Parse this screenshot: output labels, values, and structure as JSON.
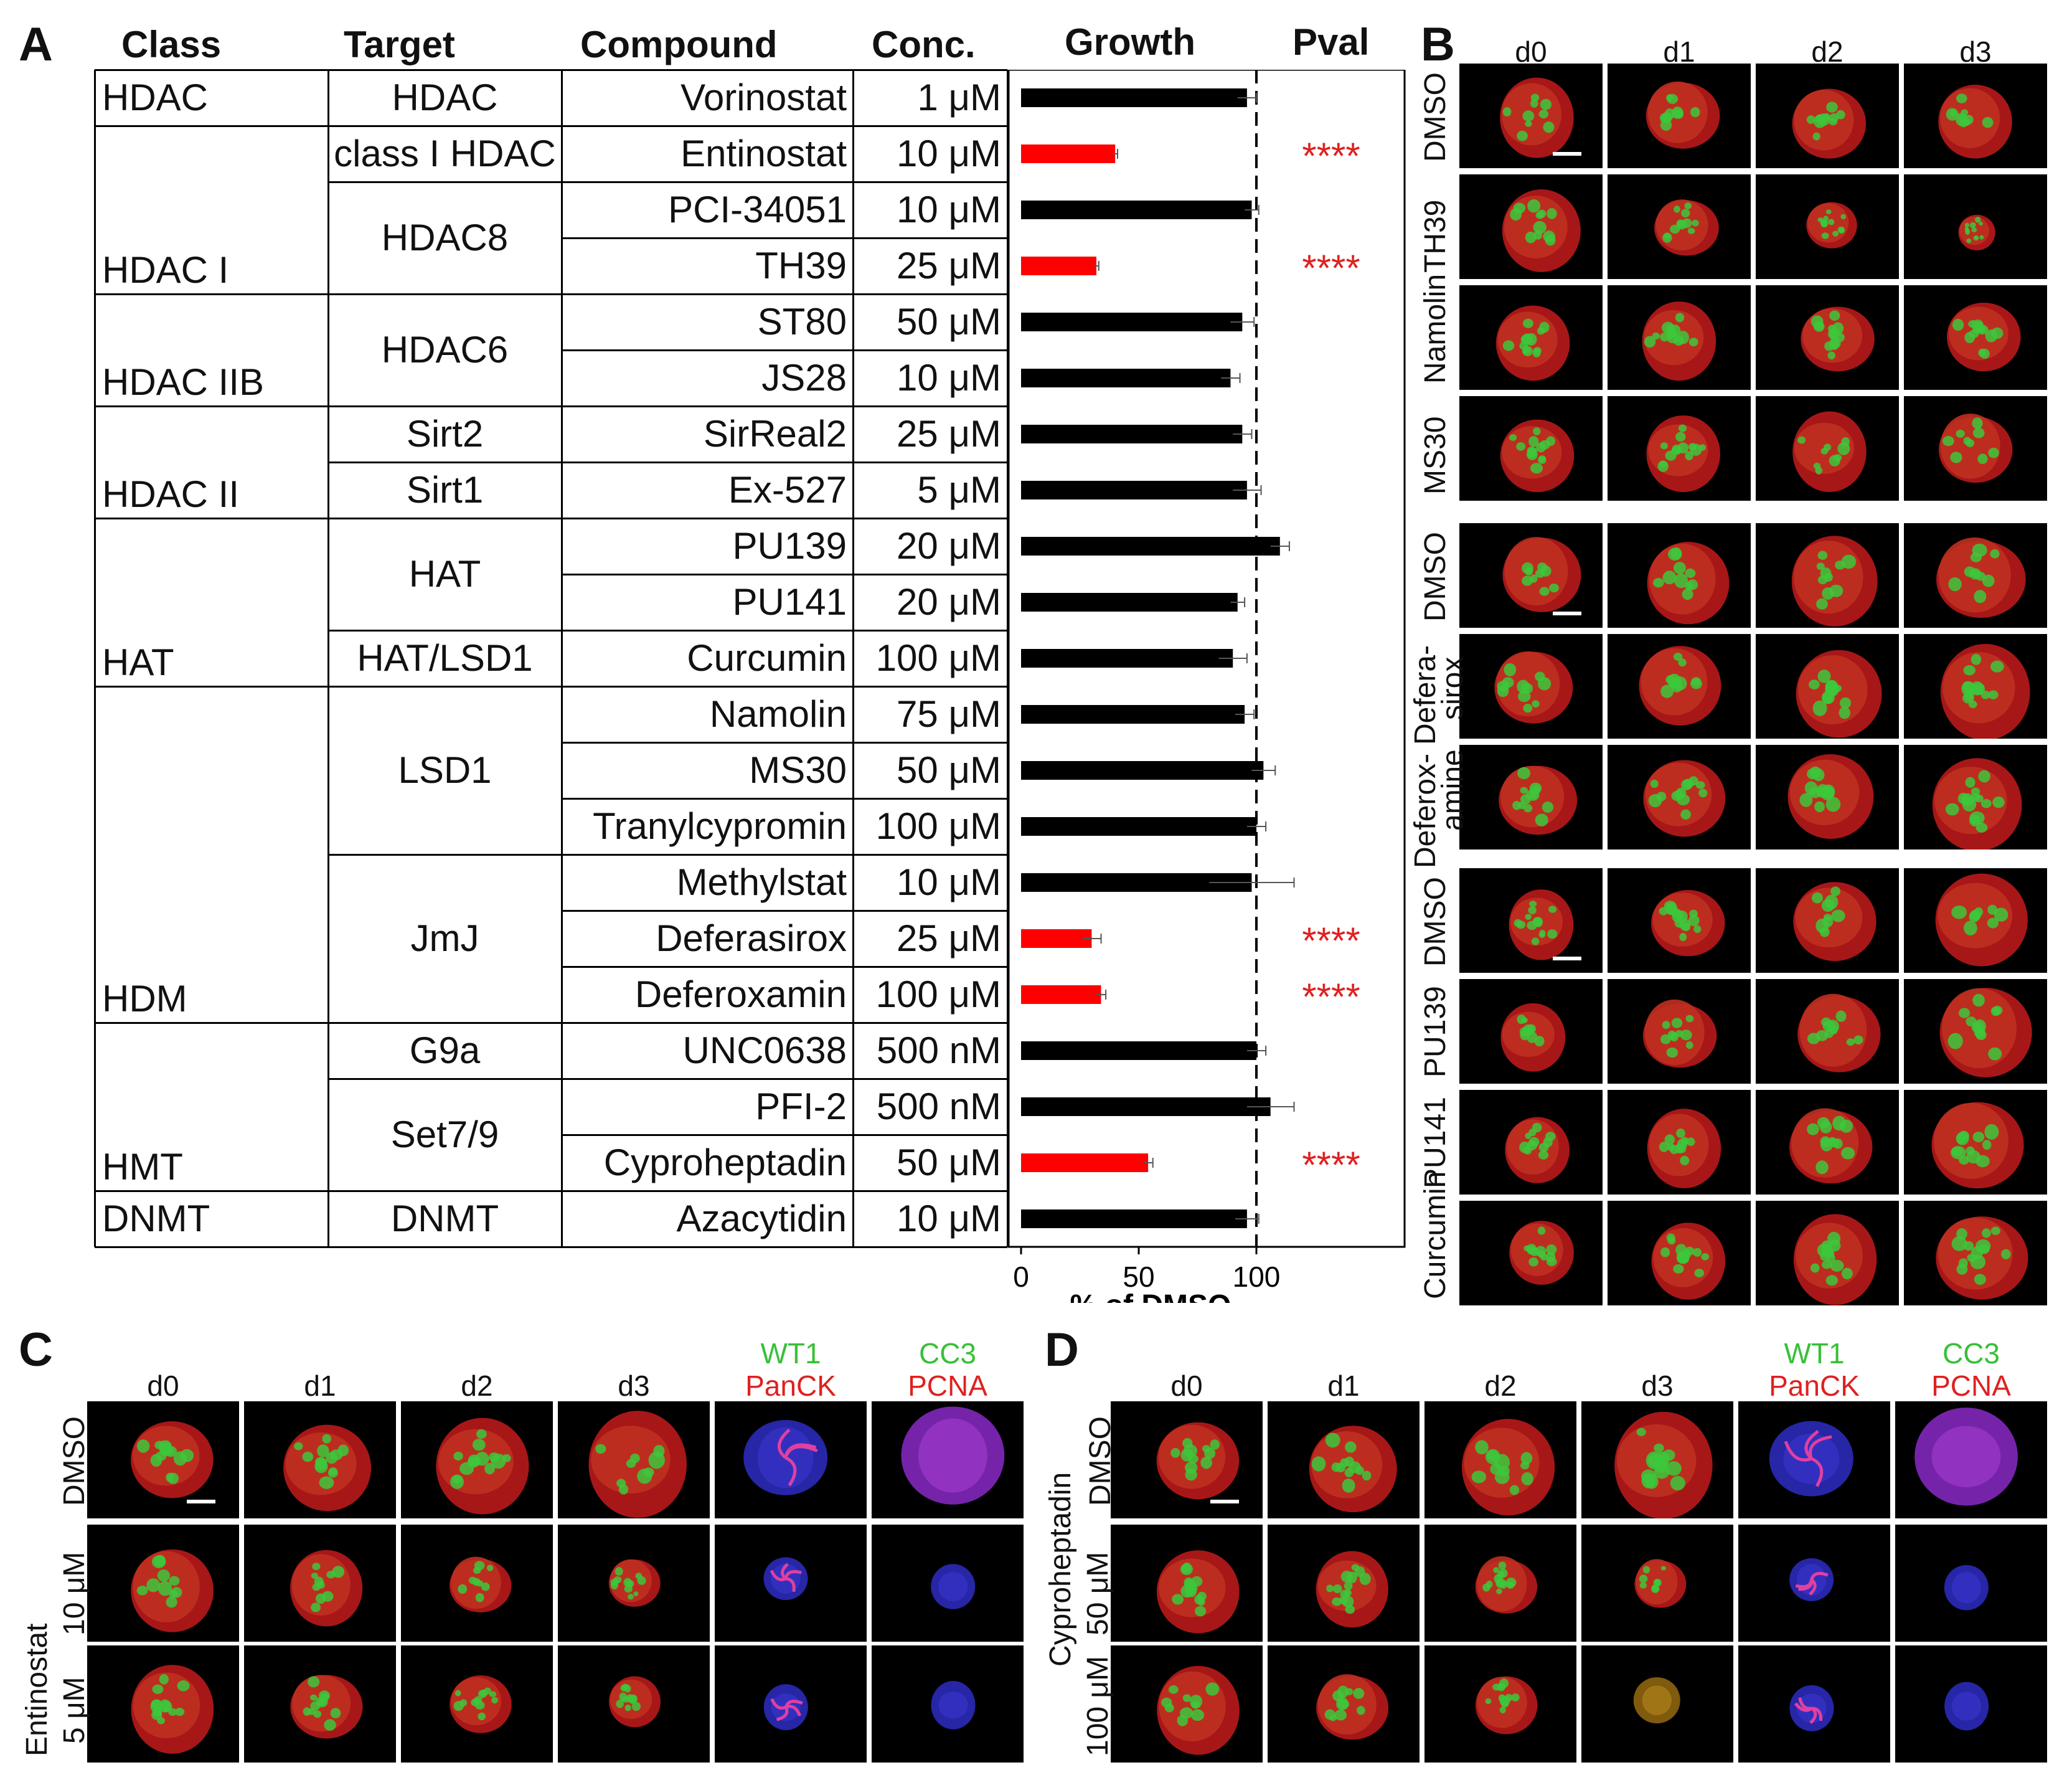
{
  "panels": {
    "A": "A",
    "B": "B",
    "C": "C",
    "D": "D"
  },
  "table": {
    "headers": {
      "class": "Class",
      "target": "Target",
      "compound": "Compound",
      "conc": "Conc.",
      "growth": "Growth",
      "pval": "Pval"
    },
    "rows": [
      {
        "compound": "Vorinostat",
        "conc": "1 μM"
      },
      {
        "compound": "Entinostat",
        "conc": "10 μM"
      },
      {
        "compound": "PCI-34051",
        "conc": "10 μM"
      },
      {
        "compound": "TH39",
        "conc": "25 μM"
      },
      {
        "compound": "ST80",
        "conc": "50 μM"
      },
      {
        "compound": "JS28",
        "conc": "10 μM"
      },
      {
        "compound": "SirReal2",
        "conc": "25 μM"
      },
      {
        "compound": "Ex-527",
        "conc": "5 μM"
      },
      {
        "compound": "PU139",
        "conc": "20 μM"
      },
      {
        "compound": "PU141",
        "conc": "20 μM"
      },
      {
        "compound": "Curcumin",
        "conc": "100 μM"
      },
      {
        "compound": "Namolin",
        "conc": "75 μM"
      },
      {
        "compound": "MS30",
        "conc": "50 μM"
      },
      {
        "compound": "Tranylcypromin",
        "conc": "100 μM"
      },
      {
        "compound": "Methylstat",
        "conc": "10 μM"
      },
      {
        "compound": "Deferasirox",
        "conc": "25 μM"
      },
      {
        "compound": "Deferoxamin",
        "conc": "100 μM"
      },
      {
        "compound": "UNC0638",
        "conc": "500 nM"
      },
      {
        "compound": "PFI-2",
        "conc": "500 nM"
      },
      {
        "compound": "Cyproheptadin",
        "conc": "50 μM"
      },
      {
        "compound": "Azacytidin",
        "conc": "10 μM"
      }
    ],
    "classes": [
      "HDAC",
      "HDAC I",
      "HDAC IIB",
      "HDAC II",
      "HAT",
      "HDM",
      "HMT",
      "DNMT"
    ],
    "targets": [
      "HDAC",
      "class I HDAC",
      "HDAC8",
      "HDAC6",
      "Sirt2",
      "Sirt1",
      "HAT",
      "HAT/LSD1",
      "LSD1",
      "JmJ",
      "G9a",
      "Set7/9",
      "DNMT"
    ]
  },
  "chart_data": {
    "type": "bar",
    "orientation": "horizontal",
    "xlabel": "% of DMSO",
    "xlim": [
      0,
      150
    ],
    "xticks": [
      "0",
      "50",
      "100"
    ],
    "reference_line": 100,
    "categories": [
      "Vorinostat",
      "Entinostat",
      "PCI-34051",
      "TH39",
      "ST80",
      "JS28",
      "SirReal2",
      "Ex-527",
      "PU139",
      "PU141",
      "Curcumin",
      "Namolin",
      "MS30",
      "Tranylcypromin",
      "Methylstat",
      "Deferasirox",
      "Deferoxamin",
      "UNC0638",
      "PFI-2",
      "Cyproheptadin",
      "Azacytidin"
    ],
    "values": [
      96,
      40,
      98,
      32,
      94,
      89,
      94,
      96,
      110,
      92,
      90,
      95,
      103,
      100,
      98,
      30,
      34,
      100,
      106,
      54,
      96
    ],
    "errors": [
      4,
      1,
      3,
      1,
      5,
      4,
      4,
      6,
      4,
      3,
      6,
      4,
      5,
      4,
      18,
      4,
      2,
      4,
      10,
      2,
      5
    ],
    "significant": [
      false,
      true,
      false,
      true,
      false,
      false,
      false,
      false,
      false,
      false,
      false,
      false,
      false,
      false,
      false,
      true,
      true,
      false,
      false,
      true,
      false
    ],
    "pval_label": "****",
    "colors": {
      "normal": "#000000",
      "significant": "#ff0000",
      "stars": "#e02020"
    }
  },
  "panelB": {
    "cols": [
      "d0",
      "d1",
      "d2",
      "d3"
    ],
    "group1": [
      "DMSO",
      "TH39",
      "Namolin",
      "MS30"
    ],
    "group2": [
      "DMSO",
      "Defera-\nsirox",
      "Deferox-\namine"
    ],
    "group2_lines": {
      "row2a": "Defera-",
      "row2b": "sirox",
      "row3a": "Deferox-",
      "row3b": "amine"
    },
    "group3": [
      "DMSO",
      "PU139",
      "PU141",
      "Curcumin"
    ]
  },
  "panelC": {
    "cols": [
      "d0",
      "d1",
      "d2",
      "d3"
    ],
    "stain1": {
      "green": "WT1",
      "red": "PanCK"
    },
    "stain2": {
      "green": "CC3",
      "red": "PCNA"
    },
    "rows": [
      "DMSO",
      "10 μM",
      "5 μM"
    ],
    "drug": "Entinostat"
  },
  "panelD": {
    "cols": [
      "d0",
      "d1",
      "d2",
      "d3"
    ],
    "stain1": {
      "green": "WT1",
      "red": "PanCK"
    },
    "stain2": {
      "green": "CC3",
      "red": "PCNA"
    },
    "rows": [
      "DMSO",
      "50 μM",
      "100 μM"
    ],
    "drug": "Cyproheptadin"
  }
}
